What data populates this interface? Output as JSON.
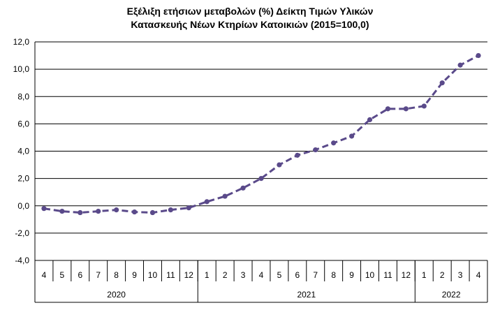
{
  "chart_data": {
    "type": "line",
    "title_line1": "Εξέλιξη ετήσιων μεταβολών (%) Δείκτη Τιμών Υλικών",
    "title_line2": "Κατασκευής Νέων Κτηρίων Κατοικιών (2015=100,0)",
    "ylim": [
      -4,
      12
    ],
    "yticks": [
      "-4,0",
      "-2,0",
      "0,0",
      "2,0",
      "4,0",
      "6,0",
      "8,0",
      "10,0",
      "12,0"
    ],
    "grid": true,
    "legend": "none",
    "categories": [
      "4",
      "5",
      "6",
      "7",
      "8",
      "9",
      "10",
      "11",
      "12",
      "1",
      "2",
      "3",
      "4",
      "5",
      "6",
      "7",
      "8",
      "9",
      "10",
      "11",
      "12",
      "1",
      "2",
      "3",
      "4"
    ],
    "years": [
      {
        "label": "2020",
        "count": 9
      },
      {
        "label": "2021",
        "count": 12
      },
      {
        "label": "2022",
        "count": 4
      }
    ],
    "series": [
      {
        "values": [
          -0.2,
          -0.4,
          -0.5,
          -0.4,
          -0.3,
          -0.45,
          -0.5,
          -0.3,
          -0.15,
          0.3,
          0.7,
          1.3,
          2.0,
          3.0,
          3.7,
          4.1,
          4.6,
          5.1,
          6.3,
          7.1,
          7.1,
          7.3,
          9.0,
          10.3,
          11.0
        ],
        "color": "#5A4A8A"
      }
    ]
  }
}
